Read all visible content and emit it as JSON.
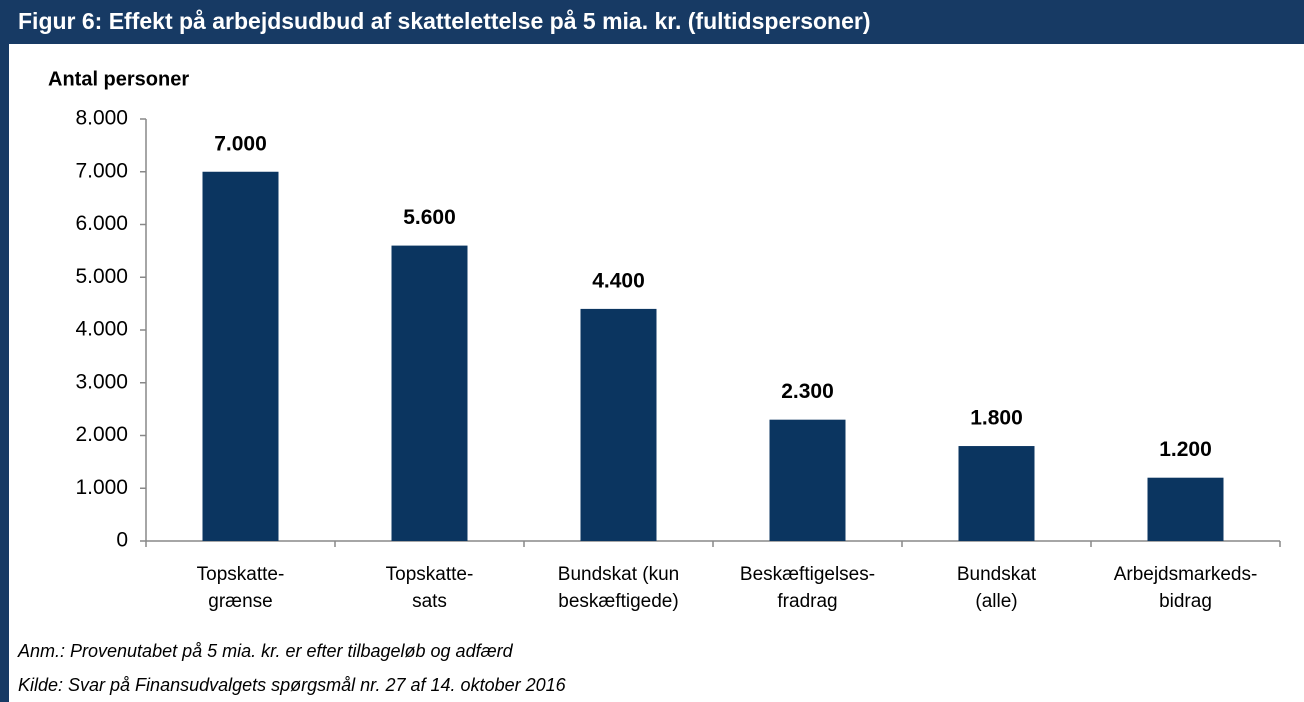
{
  "chart_data": {
    "type": "bar",
    "title": "Figur 6: Effekt på arbejdsudbud af skattelettelse på 5 mia. kr. (fultidspersoner)",
    "y_label": "Antal personer",
    "categories": [
      [
        "Topskatte-",
        "grænse"
      ],
      [
        "Topskatte-",
        "sats"
      ],
      [
        "Bundskat (kun",
        "beskæftigede)"
      ],
      [
        "Beskæftigelses-",
        "fradrag"
      ],
      [
        "Bundskat",
        "(alle)"
      ],
      [
        "Arbejdsmarkeds-",
        "bidrag"
      ]
    ],
    "values": [
      7000,
      5600,
      4400,
      2300,
      1800,
      1200
    ],
    "value_labels": [
      "7.000",
      "5.600",
      "4.400",
      "2.300",
      "1.800",
      "1.200"
    ],
    "color": "#0b3560",
    "ylim": [
      0,
      8000
    ],
    "yticks": [
      0,
      {
        "value": 1000,
        "label": "1.000"
      },
      {
        "value": 2000,
        "label": "2.000"
      },
      {
        "value": 3000,
        "label": "3.000"
      },
      {
        "value": 4000,
        "label": "4.000"
      },
      {
        "value": 5000,
        "label": "5.000"
      },
      {
        "value": 6000,
        "label": "6.000"
      },
      {
        "value": 7000,
        "label": "7.000"
      },
      {
        "value": 8000,
        "label": "8.000"
      }
    ],
    "grid": false,
    "notes": [
      "Anm.: Provenutabet på 5 mia. kr. er efter tilbageløb og adfærd",
      "Kilde: Svar på Finansudvalgets spørgsmål nr. 27 af 14. oktober 2016"
    ]
  }
}
